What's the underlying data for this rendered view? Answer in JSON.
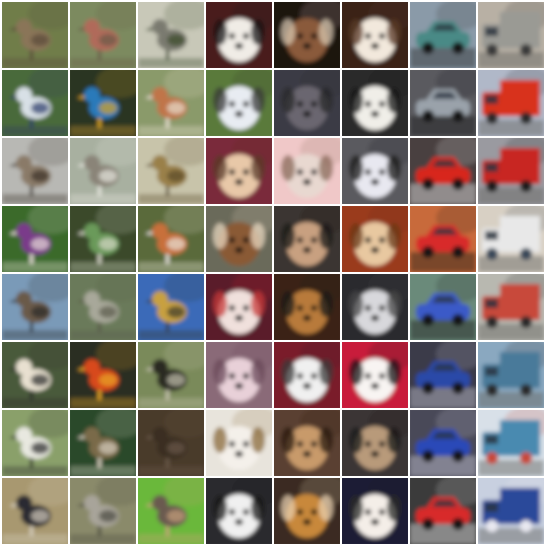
{
  "grid": {
    "rows": 8,
    "cols": 8,
    "class_columns": [
      "bird",
      "bird",
      "bird",
      "dog",
      "dog",
      "dog",
      "car",
      "truck"
    ],
    "tiles": [
      {
        "row": 0,
        "col": 0,
        "subject": "bird",
        "bg": "#6f7d4a",
        "body": "#8a7558",
        "accent": "#5a4a3a"
      },
      {
        "row": 0,
        "col": 1,
        "subject": "bird",
        "bg": "#7c8a5e",
        "body": "#b06a5a",
        "accent": "#6a5a48"
      },
      {
        "row": 0,
        "col": 2,
        "subject": "bird",
        "bg": "#c8c8b8",
        "body": "#7a7a70",
        "accent": "#3a4a2a"
      },
      {
        "row": 0,
        "col": 3,
        "subject": "dog",
        "bg": "#4a1a1a",
        "body": "#f0ece6",
        "accent": "#1a1a1a"
      },
      {
        "row": 0,
        "col": 4,
        "subject": "dog",
        "bg": "#1a1210",
        "body": "#8a5a3a",
        "accent": "#d8c8b0"
      },
      {
        "row": 0,
        "col": 5,
        "subject": "dog",
        "bg": "#3a2418",
        "body": "#f2e8dc",
        "accent": "#5a3a28"
      },
      {
        "row": 0,
        "col": 6,
        "subject": "car",
        "bg": "#8a9aa8",
        "body": "#4a8a86",
        "accent": "#2a2a2a"
      },
      {
        "row": 0,
        "col": 7,
        "subject": "truck",
        "bg": "#b8b0a4",
        "body": "#9a9a94",
        "accent": "#3a3a3a"
      },
      {
        "row": 1,
        "col": 0,
        "subject": "bird",
        "bg": "#4a6a3a",
        "body": "#d8e0e6",
        "accent": "#2a3a6a"
      },
      {
        "row": 1,
        "col": 1,
        "subject": "bird",
        "bg": "#2a3424",
        "body": "#2a7aba",
        "accent": "#d8a428"
      },
      {
        "row": 1,
        "col": 2,
        "subject": "bird",
        "bg": "#8a9a6a",
        "body": "#c07448",
        "accent": "#e8e0d0"
      },
      {
        "row": 1,
        "col": 3,
        "subject": "dog",
        "bg": "#5a7a3a",
        "body": "#e8ecf2",
        "accent": "#3a3a3a"
      },
      {
        "row": 1,
        "col": 4,
        "subject": "dog",
        "bg": "#3a3a44",
        "body": "#6a6670",
        "accent": "#2a2a2a"
      },
      {
        "row": 1,
        "col": 5,
        "subject": "dog",
        "bg": "#2a2a2a",
        "body": "#f0eee8",
        "accent": "#1a1a1a"
      },
      {
        "row": 1,
        "col": 6,
        "subject": "car",
        "bg": "#5a5a5e",
        "body": "#9aa2aa",
        "accent": "#1a1a1a"
      },
      {
        "row": 1,
        "col": 7,
        "subject": "truck",
        "bg": "#b0b8c8",
        "body": "#d8321c",
        "accent": "#2a2a2a"
      },
      {
        "row": 2,
        "col": 0,
        "subject": "bird",
        "bg": "#b8b8b4",
        "body": "#8a7a68",
        "accent": "#3a3028"
      },
      {
        "row": 2,
        "col": 1,
        "subject": "bird",
        "bg": "#a8b0a0",
        "body": "#8a8478",
        "accent": "#e8e8e0"
      },
      {
        "row": 2,
        "col": 2,
        "subject": "bird",
        "bg": "#c8c4aa",
        "body": "#9a8048",
        "accent": "#5a4a2a"
      },
      {
        "row": 2,
        "col": 3,
        "subject": "dog",
        "bg": "#7a2a3a",
        "body": "#e8c8a8",
        "accent": "#5a3a28"
      },
      {
        "row": 2,
        "col": 4,
        "subject": "dog",
        "bg": "#f0c8c8",
        "body": "#e8d8d0",
        "accent": "#8a6a5a"
      },
      {
        "row": 2,
        "col": 5,
        "subject": "dog",
        "bg": "#5a5a5e",
        "body": "#e8e8f0",
        "accent": "#1a1a1a"
      },
      {
        "row": 2,
        "col": 6,
        "subject": "car",
        "bg": "#4a4040",
        "body": "#d8281c",
        "accent": "#e8e8e8"
      },
      {
        "row": 2,
        "col": 7,
        "subject": "truck",
        "bg": "#9a9aa0",
        "body": "#c82820",
        "accent": "#1a1a1a"
      },
      {
        "row": 3,
        "col": 0,
        "subject": "bird",
        "bg": "#3a6a2a",
        "body": "#7a3a8a",
        "accent": "#e8e0d8"
      },
      {
        "row": 3,
        "col": 1,
        "subject": "bird",
        "bg": "#3a4a2a",
        "body": "#6a9a5a",
        "accent": "#d8d8c8"
      },
      {
        "row": 3,
        "col": 2,
        "subject": "bird",
        "bg": "#5a6a3a",
        "body": "#c8703a",
        "accent": "#e8e4dc"
      },
      {
        "row": 3,
        "col": 3,
        "subject": "dog",
        "bg": "#6a6a5a",
        "body": "#8a5a34",
        "accent": "#e8d8c0"
      },
      {
        "row": 3,
        "col": 4,
        "subject": "dog",
        "bg": "#3a3430",
        "body": "#c8a080",
        "accent": "#1a1a1a"
      },
      {
        "row": 3,
        "col": 5,
        "subject": "dog",
        "bg": "#9a3a1a",
        "body": "#e8c8a0",
        "accent": "#6a3a1a"
      },
      {
        "row": 3,
        "col": 6,
        "subject": "car",
        "bg": "#c86a3a",
        "body": "#d82a2a",
        "accent": "#1a1a1a"
      },
      {
        "row": 3,
        "col": 7,
        "subject": "truck",
        "bg": "#d8d0c4",
        "body": "#e8e8e8",
        "accent": "#3a4a5a"
      },
      {
        "row": 4,
        "col": 0,
        "subject": "bird",
        "bg": "#7a9ab8",
        "body": "#6a5a4a",
        "accent": "#2a2a2a"
      },
      {
        "row": 4,
        "col": 1,
        "subject": "bird",
        "bg": "#6a7a5a",
        "body": "#a8a89a",
        "accent": "#5a5a4a"
      },
      {
        "row": 4,
        "col": 2,
        "subject": "bird",
        "bg": "#3a6ab8",
        "body": "#c8a040",
        "accent": "#3a3a2a"
      },
      {
        "row": 4,
        "col": 3,
        "subject": "dog",
        "bg": "#5a1a2a",
        "body": "#f0e0dc",
        "accent": "#c83a3a"
      },
      {
        "row": 4,
        "col": 4,
        "subject": "dog",
        "bg": "#3a2418",
        "body": "#b87a3a",
        "accent": "#1a1a1a"
      },
      {
        "row": 4,
        "col": 5,
        "subject": "dog",
        "bg": "#2a2a2e",
        "body": "#d8d8dc",
        "accent": "#4a4a4a"
      },
      {
        "row": 4,
        "col": 6,
        "subject": "car",
        "bg": "#6a8a7a",
        "body": "#3a5ac8",
        "accent": "#1a1a1a"
      },
      {
        "row": 4,
        "col": 7,
        "subject": "truck",
        "bg": "#b8b8b0",
        "body": "#c8483a",
        "accent": "#2a2a2a"
      },
      {
        "row": 5,
        "col": 0,
        "subject": "bird",
        "bg": "#4a5a3a",
        "body": "#e8e0d0",
        "accent": "#2a2a2a"
      },
      {
        "row": 5,
        "col": 1,
        "subject": "bird",
        "bg": "#2a2e22",
        "body": "#d8481a",
        "accent": "#e8a828"
      },
      {
        "row": 5,
        "col": 2,
        "subject": "bird",
        "bg": "#7a8a5a",
        "body": "#2a2a24",
        "accent": "#c8c4b0"
      },
      {
        "row": 5,
        "col": 3,
        "subject": "dog",
        "bg": "#8a6a78",
        "body": "#e8d0d8",
        "accent": "#6a4a5a"
      },
      {
        "row": 5,
        "col": 4,
        "subject": "dog",
        "bg": "#7a1a2a",
        "body": "#f0f0f0",
        "accent": "#3a3a3a"
      },
      {
        "row": 5,
        "col": 5,
        "subject": "dog",
        "bg": "#c81a3a",
        "body": "#f8f4f2",
        "accent": "#1a1a1a"
      },
      {
        "row": 5,
        "col": 6,
        "subject": "car",
        "bg": "#3a3a4a",
        "body": "#2a4aa8",
        "accent": "#c8c8d0"
      },
      {
        "row": 5,
        "col": 7,
        "subject": "truck",
        "bg": "#8aa8c0",
        "body": "#4a7a9a",
        "accent": "#2a2a2a"
      },
      {
        "row": 6,
        "col": 0,
        "subject": "bird",
        "bg": "#8aa06a",
        "body": "#e8e8e0",
        "accent": "#2a2a2a"
      },
      {
        "row": 6,
        "col": 1,
        "subject": "bird",
        "bg": "#2a4a2a",
        "body": "#7a6a4a",
        "accent": "#d8d0c0"
      },
      {
        "row": 6,
        "col": 2,
        "subject": "bird",
        "bg": "#4a3a2a",
        "body": "#3a2e24",
        "accent": "#6a5a48"
      },
      {
        "row": 6,
        "col": 3,
        "subject": "dog",
        "bg": "#e8e4dc",
        "body": "#f4f0ea",
        "accent": "#8a6a3a"
      },
      {
        "row": 6,
        "col": 4,
        "subject": "dog",
        "bg": "#5a4030",
        "body": "#c89a6a",
        "accent": "#2a1a10"
      },
      {
        "row": 6,
        "col": 5,
        "subject": "dog",
        "bg": "#3a3434",
        "body": "#b89a7a",
        "accent": "#1a1a1a"
      },
      {
        "row": 6,
        "col": 6,
        "subject": "car",
        "bg": "#4a4a58",
        "body": "#2a48b8",
        "accent": "#c8c8d8"
      },
      {
        "row": 6,
        "col": 7,
        "subject": "truck",
        "bg": "#d8e0e8",
        "body": "#4a8ab0",
        "accent": "#c84a3a"
      },
      {
        "row": 7,
        "col": 0,
        "subject": "bird",
        "bg": "#a89870",
        "body": "#2a2a30",
        "accent": "#d8d0c0"
      },
      {
        "row": 7,
        "col": 1,
        "subject": "bird",
        "bg": "#8a8a6a",
        "body": "#a8a49a",
        "accent": "#4a4a40"
      },
      {
        "row": 7,
        "col": 2,
        "subject": "bird",
        "bg": "#6ab83a",
        "body": "#6a5a50",
        "accent": "#c8a07a"
      },
      {
        "row": 7,
        "col": 3,
        "subject": "dog",
        "bg": "#2a2a2e",
        "body": "#f0f0f0",
        "accent": "#1a1a1a"
      },
      {
        "row": 7,
        "col": 4,
        "subject": "dog",
        "bg": "#3a2a20",
        "body": "#c8883a",
        "accent": "#e8d0b0"
      },
      {
        "row": 7,
        "col": 5,
        "subject": "dog",
        "bg": "#1a1a34",
        "body": "#f4eee8",
        "accent": "#2a2a2a"
      },
      {
        "row": 7,
        "col": 6,
        "subject": "car",
        "bg": "#3a3a3a",
        "body": "#d82a2a",
        "accent": "#e8e8e8"
      },
      {
        "row": 7,
        "col": 7,
        "subject": "truck",
        "bg": "#c8d0e0",
        "body": "#2a4a9a",
        "accent": "#e8e8f0"
      }
    ]
  }
}
